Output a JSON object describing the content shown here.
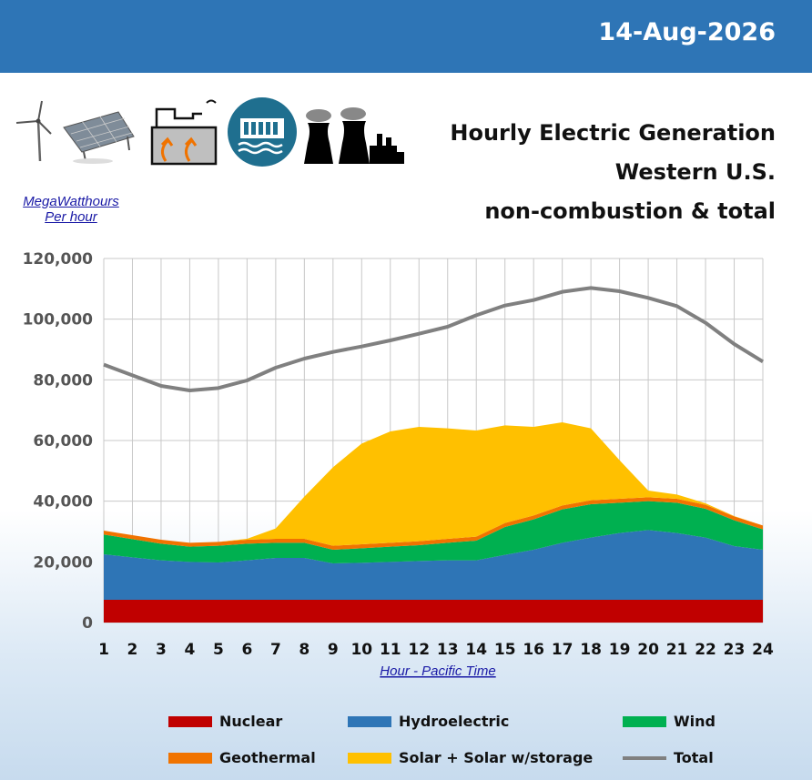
{
  "header": {
    "date": "14-Aug-2026"
  },
  "titles": {
    "line1": "Hourly Electric Generation",
    "line2": "Western U.S.",
    "line3": "non-combustion & total"
  },
  "unit_label": {
    "line1": "MegaWatthours",
    "line2": "Per hour"
  },
  "icons": [
    "wind-turbine-icon",
    "solar-panel-icon",
    "geothermal-plant-icon",
    "hydro-dam-icon",
    "nuclear-plant-icon"
  ],
  "colors": {
    "nuclear": "#c00000",
    "hydro": "#2e75b6",
    "wind": "#00b050",
    "geothermal": "#f07300",
    "solar": "#ffc000",
    "total": "#808080",
    "header": "#2e75b6"
  },
  "chart_data": {
    "type": "area",
    "xlabel": "Hour - Pacific Time",
    "ylabel": "",
    "ylim": [
      0,
      120000
    ],
    "yticks": [
      0,
      20000,
      40000,
      60000,
      80000,
      100000,
      120000
    ],
    "ytick_labels": [
      "0",
      "20,000",
      "40,000",
      "60,000",
      "80,000",
      "100,000",
      "120,000"
    ],
    "x": [
      1,
      2,
      3,
      4,
      5,
      6,
      7,
      8,
      9,
      10,
      11,
      12,
      13,
      14,
      15,
      16,
      17,
      18,
      19,
      20,
      21,
      22,
      23,
      24
    ],
    "x_labels": [
      "1",
      "2",
      "3",
      "4",
      "5",
      "6",
      "7",
      "8",
      "9",
      "10",
      "11",
      "12",
      "13",
      "14",
      "15",
      "16",
      "17",
      "18",
      "19",
      "20",
      "21",
      "22",
      "23",
      "24"
    ],
    "grid": true,
    "legend_position": "bottom",
    "stacked": true,
    "series": [
      {
        "name": "Nuclear",
        "key": "nuclear",
        "values": [
          7500,
          7500,
          7500,
          7500,
          7500,
          7500,
          7500,
          7500,
          7500,
          7500,
          7500,
          7500,
          7500,
          7500,
          7500,
          7500,
          7500,
          7500,
          7500,
          7500,
          7500,
          7500,
          7500,
          7500
        ]
      },
      {
        "name": "Hydroelectric",
        "key": "hydro",
        "values": [
          15000,
          14000,
          13000,
          12500,
          12300,
          13000,
          13800,
          13800,
          12000,
          12200,
          12500,
          12800,
          13000,
          13000,
          14800,
          16500,
          18800,
          20500,
          22000,
          23000,
          22000,
          20500,
          17700,
          16500
        ]
      },
      {
        "name": "Wind",
        "key": "wind",
        "values": [
          6500,
          6000,
          5500,
          5000,
          5500,
          5500,
          5000,
          5000,
          4500,
          4800,
          5000,
          5200,
          5800,
          6500,
          9200,
          10000,
          11000,
          11000,
          10000,
          9500,
          10000,
          9500,
          8500,
          6700
        ]
      },
      {
        "name": "Geothermal",
        "key": "geothermal",
        "values": [
          1300,
          1300,
          1300,
          1300,
          1300,
          1300,
          1300,
          1300,
          1300,
          1300,
          1300,
          1300,
          1300,
          1300,
          1300,
          1300,
          1300,
          1300,
          1300,
          1300,
          1300,
          1300,
          1300,
          1300
        ]
      },
      {
        "name": "Solar + Solar w/storage",
        "key": "solar",
        "values": [
          0,
          0,
          0,
          0,
          0,
          300,
          3400,
          13900,
          25900,
          33200,
          36700,
          37700,
          36400,
          35000,
          32200,
          29200,
          27400,
          23700,
          12700,
          2200,
          1400,
          500,
          100,
          0
        ]
      },
      {
        "name": "Total",
        "key": "total",
        "type": "line",
        "values": [
          85000,
          81500,
          78000,
          76500,
          77300,
          79800,
          84000,
          87000,
          89200,
          91000,
          93000,
          95200,
          97500,
          101300,
          104500,
          106300,
          109000,
          110300,
          109200,
          107000,
          104300,
          98800,
          91800,
          86000
        ]
      }
    ]
  },
  "legend": {
    "nuclear": "Nuclear",
    "hydro": "Hydroelectric",
    "wind": "Wind",
    "geothermal": "Geothermal",
    "solar": "Solar + Solar w/storage",
    "total": "Total"
  }
}
